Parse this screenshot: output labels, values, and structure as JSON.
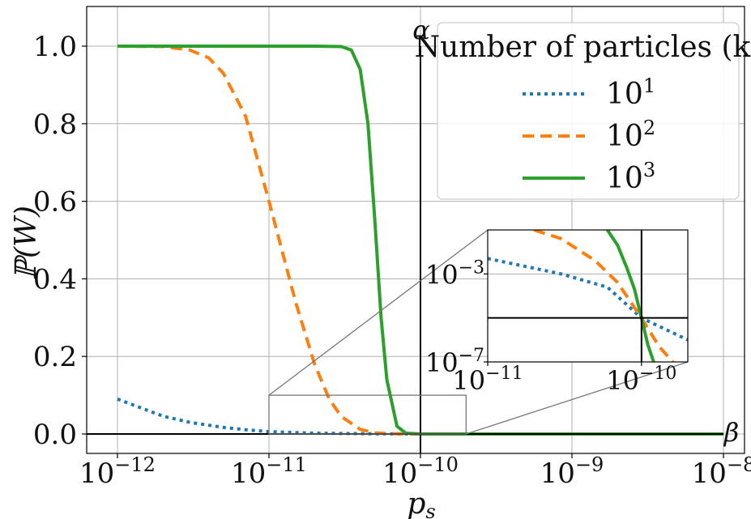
{
  "chart_data": {
    "type": "line",
    "xscale": "log",
    "xlim": [
      "1e-12",
      "1e-8"
    ],
    "ylim": [
      -0.05,
      1.1
    ],
    "grid": true,
    "xlabel": "p_s",
    "ylabel": "ℙ(W)",
    "x_ticks": [
      {
        "base": "10",
        "exp": "−12"
      },
      {
        "base": "10",
        "exp": "−11"
      },
      {
        "base": "10",
        "exp": "−10"
      },
      {
        "base": "10",
        "exp": "−9"
      },
      {
        "base": "10",
        "exp": "−8"
      }
    ],
    "y_ticks": [
      "0.0",
      "0.2",
      "0.4",
      "0.6",
      "0.8",
      "1.0"
    ],
    "annotations": {
      "alpha": "α",
      "alpha_x": "1e-10",
      "beta": "β",
      "beta_y": 0
    },
    "legend": {
      "title": "Number of particles (k)",
      "placement": "top-right",
      "entries": [
        {
          "base": "10",
          "exp": "1",
          "color": "#1f77b4",
          "style": "dotted"
        },
        {
          "base": "10",
          "exp": "2",
          "color": "#ff7f0e",
          "style": "dashed"
        },
        {
          "base": "10",
          "exp": "3",
          "color": "#2ca02c",
          "style": "solid"
        }
      ]
    },
    "series": [
      {
        "name": "10^1",
        "color": "#1f77b4",
        "style": "dotted",
        "x": [
          "1e-12",
          "2e-12",
          "3e-12",
          "5e-12",
          "7e-12",
          "1e-11",
          "2e-11",
          "5e-11",
          "1e-10",
          "1e-9",
          "1e-8"
        ],
        "y": [
          0.09,
          0.046,
          0.03,
          0.017,
          0.011,
          0.006,
          0.002,
          0.0004,
          0.0001,
          0.0,
          0.0
        ]
      },
      {
        "name": "10^2",
        "color": "#ff7f0e",
        "style": "dashed",
        "x": [
          "1e-12",
          "2e-12",
          "3e-12",
          "4e-12",
          "5e-12",
          "7e-12",
          "1e-11",
          "1.5e-11",
          "2e-11",
          "2.5e-11",
          "3e-11",
          "4e-11",
          "5e-11",
          "6e-11",
          "8e-11",
          "1e-10",
          "1e-9",
          "1e-8"
        ],
        "y": [
          1.0,
          0.999,
          0.99,
          0.97,
          0.93,
          0.82,
          0.6,
          0.34,
          0.18,
          0.09,
          0.045,
          0.012,
          0.003,
          0.001,
          0.0002,
          0.0,
          0.0,
          0.0
        ]
      },
      {
        "name": "10^3",
        "color": "#2ca02c",
        "style": "solid",
        "x": [
          "1e-12",
          "2e-11",
          "3e-11",
          "3.5e-11",
          "4e-11",
          "4.5e-11",
          "5e-11",
          "5.5e-11",
          "6e-11",
          "7e-11",
          "8e-11",
          "1e-10",
          "1e-9",
          "1e-8"
        ],
        "y": [
          1.0,
          1.0,
          0.999,
          0.99,
          0.94,
          0.8,
          0.55,
          0.3,
          0.14,
          0.02,
          0.002,
          0.0,
          0.0,
          0.0
        ]
      }
    ],
    "inset": {
      "xscale": "log",
      "yscale": "log",
      "xlim": [
        "1e-11",
        "2e-10"
      ],
      "ylim": [
        "1e-7",
        "1e-1"
      ],
      "zoom_box": {
        "x": [
          "1e-11",
          "2e-10"
        ],
        "y": [
          0,
          0.1
        ]
      },
      "x_ticks": [
        {
          "base": "10",
          "exp": "−11"
        },
        {
          "base": "10",
          "exp": "−10"
        }
      ],
      "y_ticks": [
        {
          "base": "10",
          "exp": "−3"
        },
        {
          "base": "10",
          "exp": "−7"
        }
      ],
      "vline_x": "1e-10",
      "hline_y": "1e-5",
      "series": [
        {
          "name": "10^1",
          "x": [
            "1e-11",
            "3e-11",
            "6e-11",
            "1e-10",
            "2e-10"
          ],
          "y": [
            "5e-3",
            "1e-3",
            "2.5e-4",
            "1e-5",
            "1e-6"
          ]
        },
        {
          "name": "10^2",
          "x": [
            "2e-11",
            "3e-11",
            "5e-11",
            "7e-11",
            "1e-10",
            "1.3e-10",
            "1.6e-10"
          ],
          "y": [
            "1e-1",
            "4e-2",
            "4e-3",
            "4e-4",
            "1e-5",
            "5e-7",
            "1e-7"
          ]
        },
        {
          "name": "10^3",
          "x": [
            "6e-11",
            "7e-11",
            "8e-11",
            "9e-11",
            "1e-10",
            "1.1e-10",
            "1.2e-10"
          ],
          "y": [
            "1e-1",
            "2e-2",
            "2e-3",
            "2e-4",
            "1e-5",
            "6e-7",
            "1e-7"
          ]
        }
      ]
    }
  }
}
